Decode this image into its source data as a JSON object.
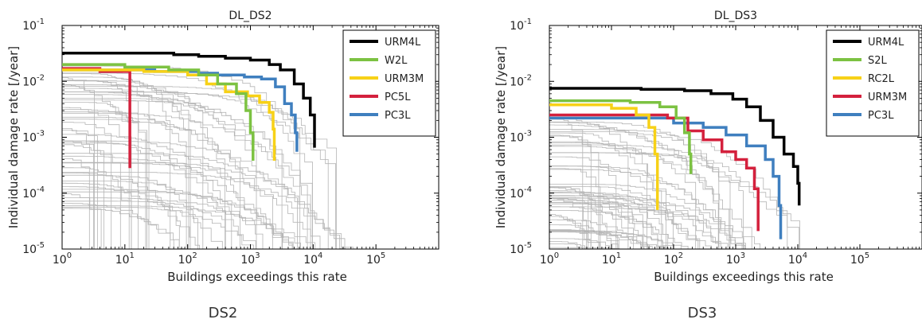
{
  "captions": [
    "DS2",
    "DS3"
  ],
  "chart_data": [
    {
      "type": "line",
      "title": "DL_DS2",
      "xlabel": "Buildings exceedings this rate",
      "ylabel": "Individual damage rate  [/year]",
      "xscale": "log",
      "yscale": "log",
      "xlim": [
        1,
        1000000
      ],
      "ylim": [
        1e-05,
        0.1
      ],
      "x_ticks": [
        {
          "value": 1,
          "base": "10",
          "exp": "0"
        },
        {
          "value": 10,
          "base": "10",
          "exp": "1"
        },
        {
          "value": 100,
          "base": "10",
          "exp": "2"
        },
        {
          "value": 1000,
          "base": "10",
          "exp": "3"
        },
        {
          "value": 10000,
          "base": "10",
          "exp": "4"
        },
        {
          "value": 100000,
          "base": "10",
          "exp": "5"
        }
      ],
      "y_ticks": [
        {
          "value": 1e-05,
          "base": "10",
          "exp": "-5"
        },
        {
          "value": 0.0001,
          "base": "10",
          "exp": "-4"
        },
        {
          "value": 0.001,
          "base": "10",
          "exp": "-3"
        },
        {
          "value": 0.01,
          "base": "10",
          "exp": "-2"
        },
        {
          "value": 0.1,
          "base": "10",
          "exp": "-1"
        }
      ],
      "legend_position": "top-right",
      "background_series_color": "#b5b5b5",
      "series": [
        {
          "name": "URM4L",
          "color": "#000000",
          "points": [
            [
              1,
              0.032
            ],
            [
              20,
              0.032
            ],
            [
              60,
              0.03
            ],
            [
              150,
              0.028
            ],
            [
              400,
              0.026
            ],
            [
              1000,
              0.024
            ],
            [
              2000,
              0.02
            ],
            [
              3000,
              0.016
            ],
            [
              5000,
              0.009
            ],
            [
              7000,
              0.005
            ],
            [
              9000,
              0.0025
            ],
            [
              10500,
              0.00065
            ]
          ]
        },
        {
          "name": "W2L",
          "color": "#7cc242",
          "points": [
            [
              1,
              0.02
            ],
            [
              10,
              0.018
            ],
            [
              50,
              0.016
            ],
            [
              150,
              0.013
            ],
            [
              300,
              0.009
            ],
            [
              600,
              0.006
            ],
            [
              850,
              0.003
            ],
            [
              1000,
              0.0012
            ],
            [
              1100,
              0.00038
            ]
          ]
        },
        {
          "name": "URM3M",
          "color": "#f7d117",
          "points": [
            [
              1,
              0.016
            ],
            [
              20,
              0.015
            ],
            [
              100,
              0.013
            ],
            [
              200,
              0.009
            ],
            [
              400,
              0.0065
            ],
            [
              900,
              0.0055
            ],
            [
              1400,
              0.0042
            ],
            [
              2000,
              0.0028
            ],
            [
              2300,
              0.0014
            ],
            [
              2400,
              0.00038
            ]
          ]
        },
        {
          "name": "PC5L",
          "color": "#d4213d",
          "points": [
            [
              1,
              0.017
            ],
            [
              4,
              0.015
            ],
            [
              12,
              0.013
            ],
            [
              12,
              0.00028
            ]
          ]
        },
        {
          "name": "PC3L",
          "color": "#3f7fbf",
          "points": [
            [
              1,
              0.016
            ],
            [
              30,
              0.015
            ],
            [
              150,
              0.014
            ],
            [
              300,
              0.013
            ],
            [
              800,
              0.012
            ],
            [
              1500,
              0.011
            ],
            [
              2500,
              0.008
            ],
            [
              3500,
              0.004
            ],
            [
              4500,
              0.0025
            ],
            [
              5200,
              0.0012
            ],
            [
              5500,
              0.00055
            ]
          ]
        }
      ]
    },
    {
      "type": "line",
      "title": "DL_DS3",
      "xlabel": "Buildings exceedings this rate",
      "ylabel": "Individual damage rate  [/year]",
      "xscale": "log",
      "yscale": "log",
      "xlim": [
        1,
        1000000
      ],
      "ylim": [
        1e-05,
        0.1
      ],
      "x_ticks": [
        {
          "value": 1,
          "base": "10",
          "exp": "0"
        },
        {
          "value": 10,
          "base": "10",
          "exp": "1"
        },
        {
          "value": 100,
          "base": "10",
          "exp": "2"
        },
        {
          "value": 1000,
          "base": "10",
          "exp": "3"
        },
        {
          "value": 10000,
          "base": "10",
          "exp": "4"
        },
        {
          "value": 100000,
          "base": "10",
          "exp": "5"
        }
      ],
      "y_ticks": [
        {
          "value": 1e-05,
          "base": "10",
          "exp": "-5"
        },
        {
          "value": 0.0001,
          "base": "10",
          "exp": "-4"
        },
        {
          "value": 0.001,
          "base": "10",
          "exp": "-3"
        },
        {
          "value": 0.01,
          "base": "10",
          "exp": "-2"
        },
        {
          "value": 0.1,
          "base": "10",
          "exp": "-1"
        }
      ],
      "legend_position": "top-right",
      "background_series_color": "#b5b5b5",
      "series": [
        {
          "name": "URM4L",
          "color": "#000000",
          "points": [
            [
              1,
              0.0075
            ],
            [
              30,
              0.0072
            ],
            [
              150,
              0.0068
            ],
            [
              400,
              0.006
            ],
            [
              900,
              0.0048
            ],
            [
              1500,
              0.0035
            ],
            [
              2500,
              0.002
            ],
            [
              4000,
              0.001
            ],
            [
              6000,
              0.0005
            ],
            [
              8500,
              0.0003
            ],
            [
              10000,
              0.00015
            ],
            [
              10500,
              6e-05
            ]
          ]
        },
        {
          "name": "S2L",
          "color": "#7cc242",
          "points": [
            [
              1,
              0.0045
            ],
            [
              20,
              0.0042
            ],
            [
              60,
              0.0035
            ],
            [
              110,
              0.0022
            ],
            [
              150,
              0.0012
            ],
            [
              180,
              0.0005
            ],
            [
              190,
              0.00022
            ]
          ]
        },
        {
          "name": "RC2L",
          "color": "#f7d117",
          "points": [
            [
              1,
              0.0038
            ],
            [
              10,
              0.0033
            ],
            [
              25,
              0.0025
            ],
            [
              40,
              0.0015
            ],
            [
              50,
              0.0005
            ],
            [
              55,
              5e-05
            ]
          ]
        },
        {
          "name": "URM3M",
          "color": "#d4213d",
          "points": [
            [
              1,
              0.0025
            ],
            [
              80,
              0.0022
            ],
            [
              170,
              0.0013
            ],
            [
              300,
              0.0009
            ],
            [
              600,
              0.00055
            ],
            [
              1000,
              0.0004
            ],
            [
              1500,
              0.00028
            ],
            [
              2000,
              0.00012
            ],
            [
              2300,
              2.1e-05
            ]
          ]
        },
        {
          "name": "PC3L",
          "color": "#3f7fbf",
          "points": [
            [
              1,
              0.0022
            ],
            [
              100,
              0.0018
            ],
            [
              300,
              0.0015
            ],
            [
              700,
              0.0011
            ],
            [
              1500,
              0.0007
            ],
            [
              3000,
              0.0004
            ],
            [
              4000,
              0.0002
            ],
            [
              5000,
              6e-05
            ],
            [
              5300,
              1.5e-05
            ]
          ]
        }
      ]
    }
  ]
}
